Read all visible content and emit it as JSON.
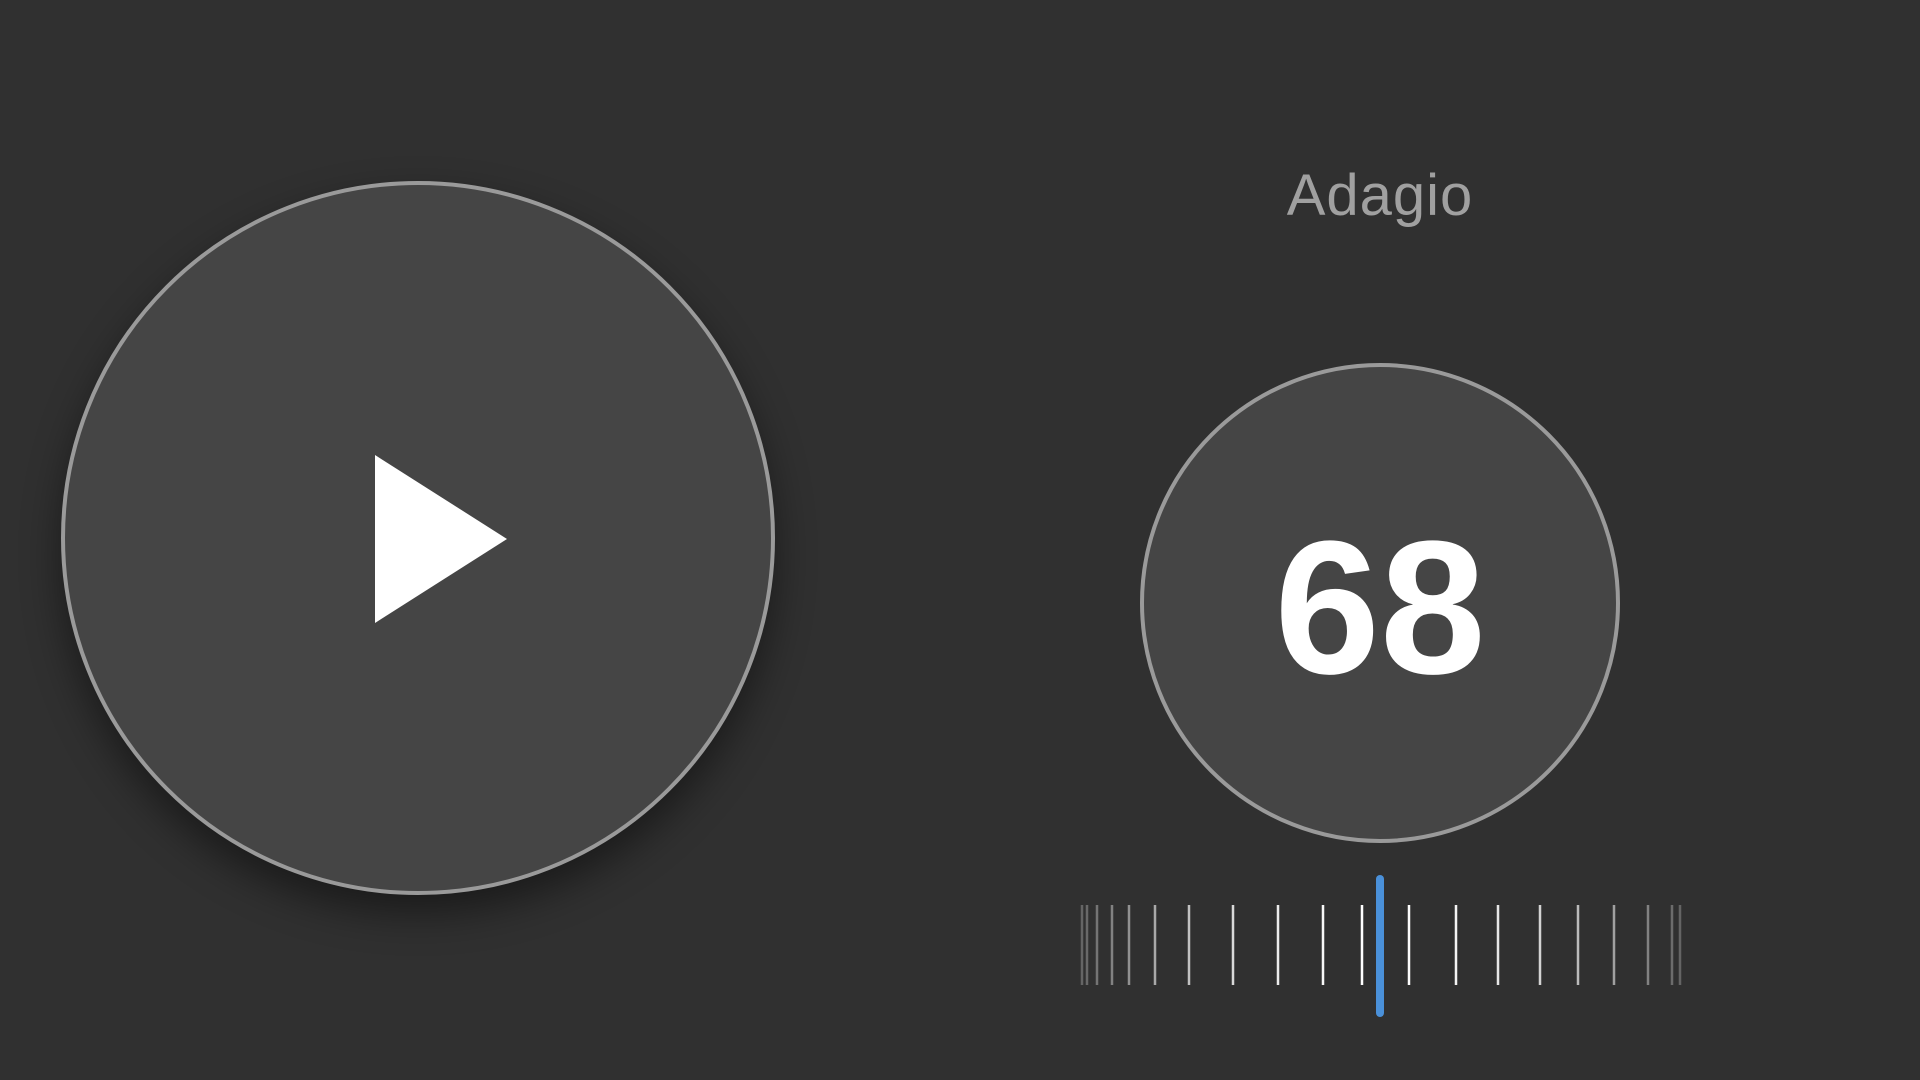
{
  "tempo": {
    "name": "Adagio",
    "bpm": "68"
  },
  "player": {
    "state": "paused",
    "control_icon": "play-icon"
  },
  "colors": {
    "background": "#303030",
    "circle_fill": "#454545",
    "circle_border": "#9a9a9a",
    "accent": "#4a90d9"
  }
}
